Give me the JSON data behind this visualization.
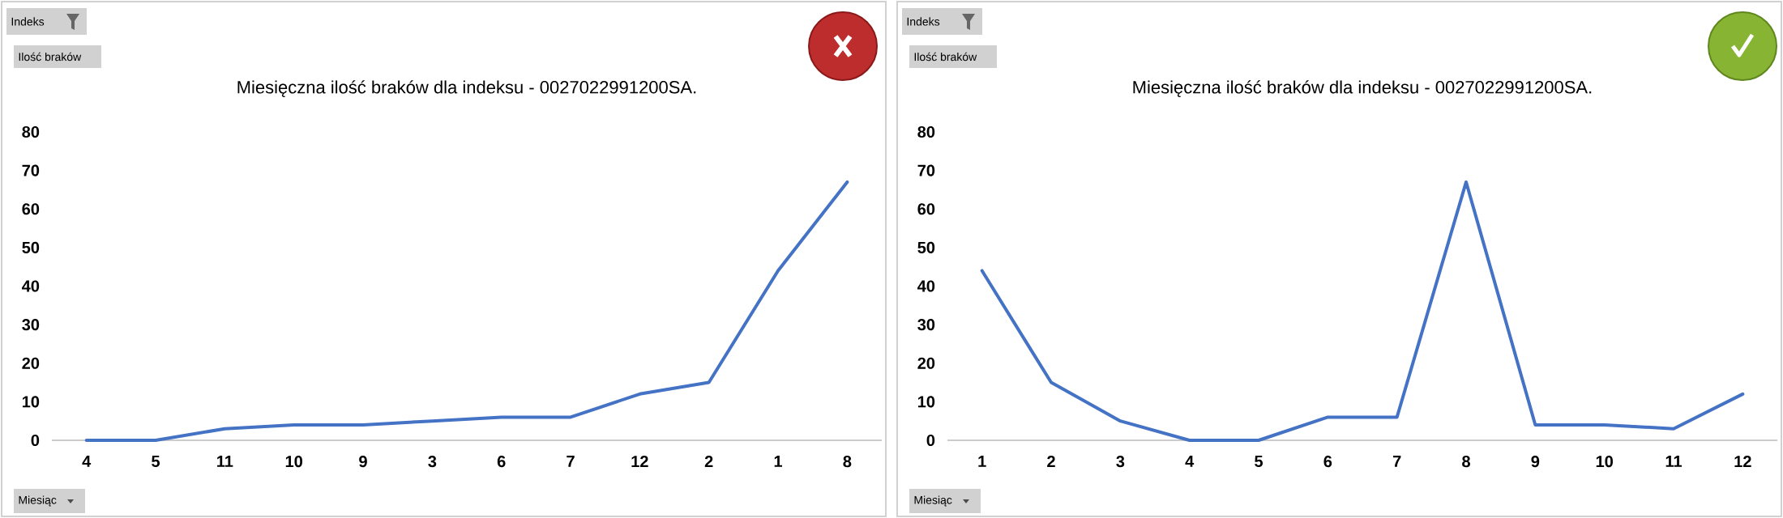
{
  "chart_data": [
    {
      "type": "line",
      "title": "Miesięczna ilość braków dla indeksu - 0027022991200SA.",
      "categories": [
        "4",
        "5",
        "11",
        "10",
        "9",
        "3",
        "6",
        "7",
        "12",
        "2",
        "1",
        "8"
      ],
      "values": [
        0,
        0,
        3,
        4,
        4,
        5,
        6,
        6,
        12,
        15,
        44,
        67
      ],
      "color": "#4472c4",
      "ylim": [
        0,
        80
      ],
      "yticks": [
        0,
        10,
        20,
        30,
        40,
        50,
        60,
        70,
        80
      ],
      "annotations": [
        "Indeks",
        "Ilość braków",
        "Miesiąc"
      ]
    },
    {
      "type": "line",
      "title": "Miesięczna ilość braków dla indeksu - 0027022991200SA.",
      "categories": [
        "1",
        "2",
        "3",
        "4",
        "5",
        "6",
        "7",
        "8",
        "9",
        "10",
        "11",
        "12"
      ],
      "values": [
        44,
        15,
        5,
        0,
        0,
        6,
        6,
        67,
        4,
        4,
        3,
        12
      ],
      "color": "#4472c4",
      "ylim": [
        0,
        80
      ],
      "yticks": [
        0,
        10,
        20,
        30,
        40,
        50,
        60,
        70,
        80
      ],
      "annotations": [
        "Indeks",
        "Ilość braków",
        "Miesiąc"
      ]
    }
  ]
}
